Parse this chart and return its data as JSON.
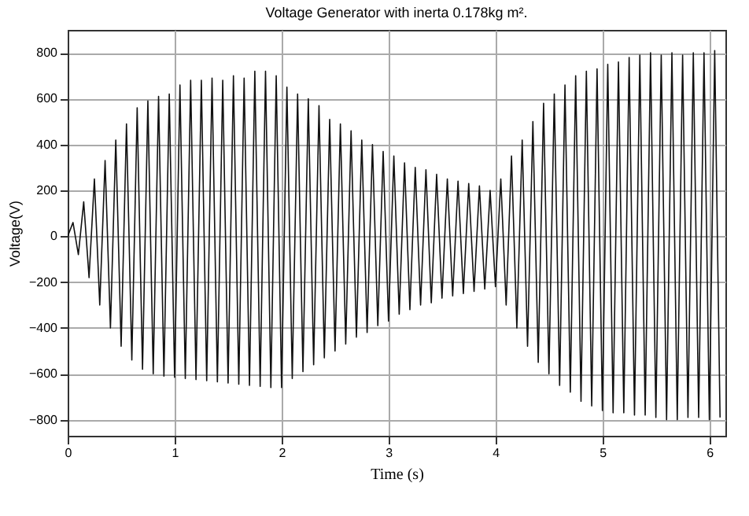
{
  "chart_data": {
    "type": "line",
    "title": "Voltage Generator with inerta 0.178kg m².",
    "xlabel": "Time (s)",
    "ylabel": "Voltage(V)",
    "xlim": [
      0,
      6.15
    ],
    "ylim": [
      -870,
      900
    ],
    "xticks": [
      0,
      1,
      2,
      3,
      4,
      5,
      6
    ],
    "yticks": [
      -800,
      -600,
      -400,
      -200,
      0,
      200,
      400,
      600,
      800
    ],
    "grid": true,
    "marker": "none",
    "line_style": "solid",
    "series": [
      {
        "color": "#111111",
        "x": [
          0,
          0.05,
          0.1,
          0.15,
          0.2,
          0.25,
          0.3,
          0.35,
          0.4,
          0.45,
          0.5,
          0.55,
          0.6,
          0.65,
          0.7,
          0.75,
          0.8,
          0.85,
          0.9,
          0.95,
          1.0,
          1.05,
          1.1,
          1.15,
          1.2,
          1.25,
          1.3,
          1.35,
          1.4,
          1.45,
          1.5,
          1.55,
          1.6,
          1.65,
          1.7,
          1.75,
          1.8,
          1.85,
          1.9,
          1.95,
          2.0,
          2.05,
          2.1,
          2.15,
          2.2,
          2.25,
          2.3,
          2.35,
          2.4,
          2.45,
          2.5,
          2.55,
          2.6,
          2.65,
          2.7,
          2.75,
          2.8,
          2.85,
          2.9,
          2.95,
          3.0,
          3.05,
          3.1,
          3.15,
          3.2,
          3.25,
          3.3,
          3.35,
          3.4,
          3.45,
          3.5,
          3.55,
          3.6,
          3.65,
          3.7,
          3.75,
          3.8,
          3.85,
          3.9,
          3.95,
          4.0,
          4.05,
          4.1,
          4.15,
          4.2,
          4.25,
          4.3,
          4.35,
          4.4,
          4.45,
          4.5,
          4.55,
          4.6,
          4.65,
          4.7,
          4.75,
          4.8,
          4.85,
          4.9,
          4.95,
          5.0,
          5.05,
          5.1,
          5.15,
          5.2,
          5.25,
          5.3,
          5.35,
          5.4,
          5.45,
          5.5,
          5.55,
          5.6,
          5.65,
          5.7,
          5.75,
          5.8,
          5.85,
          5.9,
          5.95,
          6.0,
          6.05,
          6.1
        ],
        "values": [
          0,
          60,
          -80,
          150,
          -180,
          250,
          -300,
          330,
          -400,
          420,
          -480,
          490,
          -540,
          560,
          -580,
          590,
          -600,
          610,
          -610,
          620,
          -615,
          660,
          -620,
          680,
          -625,
          680,
          -630,
          690,
          -635,
          680,
          -640,
          700,
          -645,
          690,
          -650,
          720,
          -655,
          720,
          -660,
          700,
          -660,
          650,
          -620,
          620,
          -590,
          600,
          -560,
          570,
          -530,
          510,
          -500,
          490,
          -470,
          460,
          -440,
          420,
          -420,
          400,
          -390,
          370,
          -370,
          350,
          -340,
          320,
          -320,
          300,
          -300,
          290,
          -290,
          270,
          -270,
          250,
          -260,
          240,
          -250,
          230,
          -240,
          220,
          -230,
          200,
          -220,
          250,
          -300,
          350,
          -400,
          420,
          -480,
          500,
          -550,
          580,
          -600,
          620,
          -650,
          660,
          -680,
          700,
          -720,
          720,
          -740,
          730,
          -760,
          750,
          -770,
          760,
          -770,
          780,
          -780,
          790,
          -780,
          800,
          -790,
          790,
          -800,
          800,
          -800,
          790,
          -790,
          800,
          -790,
          800,
          -800,
          810,
          -790
        ]
      }
    ]
  }
}
